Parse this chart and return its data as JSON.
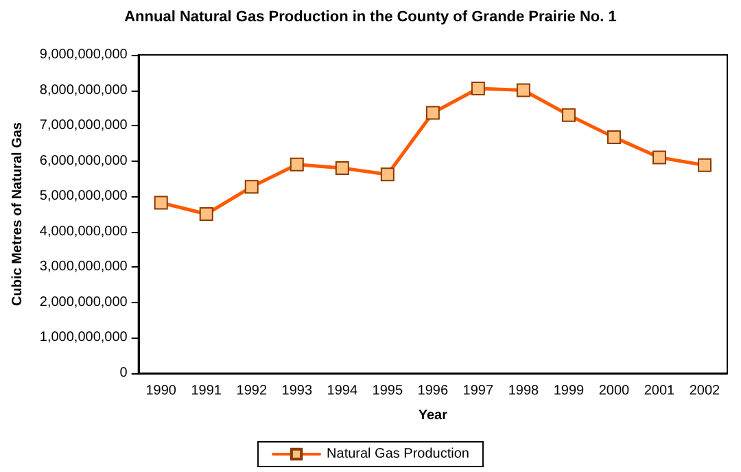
{
  "chart_data": {
    "type": "line",
    "title": "Annual Natural Gas Production in the County of Grande Prairie No. 1",
    "xlabel": "Year",
    "ylabel": "Cubic Metres of Natural Gas",
    "categories": [
      "1990",
      "1991",
      "1992",
      "1993",
      "1994",
      "1995",
      "1996",
      "1997",
      "1998",
      "1999",
      "2000",
      "2001",
      "2002"
    ],
    "series": [
      {
        "name": "Natural Gas Production",
        "color": "#ff5a00",
        "values": [
          4820000000,
          4500000000,
          5270000000,
          5900000000,
          5800000000,
          5620000000,
          7360000000,
          8050000000,
          8000000000,
          7300000000,
          6670000000,
          6100000000,
          5880000000
        ]
      }
    ],
    "ylim": [
      0,
      9000000000
    ],
    "yticks": [
      0,
      {
        "value": 1000000000,
        "label": "1,000,000,000"
      },
      {
        "value": 2000000000,
        "label": "2,000,000,000"
      },
      {
        "value": 3000000000,
        "label": "3,000,000,000"
      },
      {
        "value": 4000000000,
        "label": "4,000,000,000"
      },
      {
        "value": 5000000000,
        "label": "5,000,000,000"
      },
      {
        "value": 6000000000,
        "label": "6,000,000,000"
      },
      {
        "value": 7000000000,
        "label": "7,000,000,000"
      },
      {
        "value": 8000000000,
        "label": "8,000,000,000"
      },
      {
        "value": 9000000000,
        "label": "9,000,000,000"
      }
    ],
    "marker": "square",
    "line_style": "solid",
    "legend": "bottom",
    "grid": false
  }
}
